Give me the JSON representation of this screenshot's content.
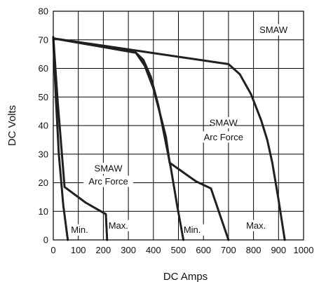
{
  "chart_data": {
    "type": "line",
    "title": "",
    "xlabel": "DC Amps",
    "ylabel": "DC Volts",
    "xlim": [
      0,
      1000
    ],
    "ylim": [
      0,
      80
    ],
    "x_ticks": [
      0,
      100,
      200,
      300,
      400,
      500,
      600,
      700,
      800,
      900,
      1000
    ],
    "y_ticks": [
      0,
      10,
      20,
      30,
      40,
      50,
      60,
      70,
      80
    ],
    "grid": true,
    "series": [
      {
        "points": [
          [
            0,
            70.5
          ],
          [
            10,
            50
          ],
          [
            22,
            30
          ],
          [
            40,
            12
          ],
          [
            58,
            0
          ]
        ]
      },
      {
        "points": [
          [
            0,
            71
          ],
          [
            18,
            48
          ],
          [
            45,
            18.5
          ],
          [
            130,
            13
          ],
          [
            210,
            9
          ],
          [
            215,
            0
          ]
        ]
      },
      {
        "points": [
          [
            0,
            70.5
          ],
          [
            330,
            65.5
          ],
          [
            360,
            63
          ],
          [
            390,
            57
          ],
          [
            420,
            47
          ],
          [
            445,
            36
          ],
          [
            470,
            25
          ],
          [
            495,
            12
          ],
          [
            520,
            0
          ]
        ]
      },
      {
        "points": [
          [
            0,
            70.5
          ],
          [
            330,
            65.5
          ],
          [
            365,
            61
          ],
          [
            400,
            53
          ],
          [
            430,
            43
          ],
          [
            450,
            36
          ],
          [
            465,
            27
          ],
          [
            570,
            20.5
          ],
          [
            630,
            18
          ],
          [
            700,
            0
          ]
        ]
      },
      {
        "points": [
          [
            0,
            70.5
          ],
          [
            700,
            61.5
          ],
          [
            745,
            58
          ],
          [
            790,
            51
          ],
          [
            830,
            42
          ],
          [
            855,
            35
          ],
          [
            875,
            27
          ],
          [
            900,
            14
          ],
          [
            925,
            0
          ]
        ]
      }
    ],
    "annotations": [
      {
        "text": "SMAW",
        "x": 880,
        "y": 73.5
      },
      {
        "text": "SMAW",
        "x": 680,
        "y": 41
      },
      {
        "text": "Arc Force",
        "x": 680,
        "y": 36
      },
      {
        "text": "SMAW",
        "x": 220,
        "y": 25
      },
      {
        "text": "Arc Force",
        "x": 220,
        "y": 20.5
      },
      {
        "text": "Min.",
        "x": 105,
        "y": 3.5
      },
      {
        "text": "Max.",
        "x": 260,
        "y": 5
      },
      {
        "text": "Min.",
        "x": 555,
        "y": 3.5
      },
      {
        "text": "Max.",
        "x": 810,
        "y": 5
      }
    ]
  }
}
